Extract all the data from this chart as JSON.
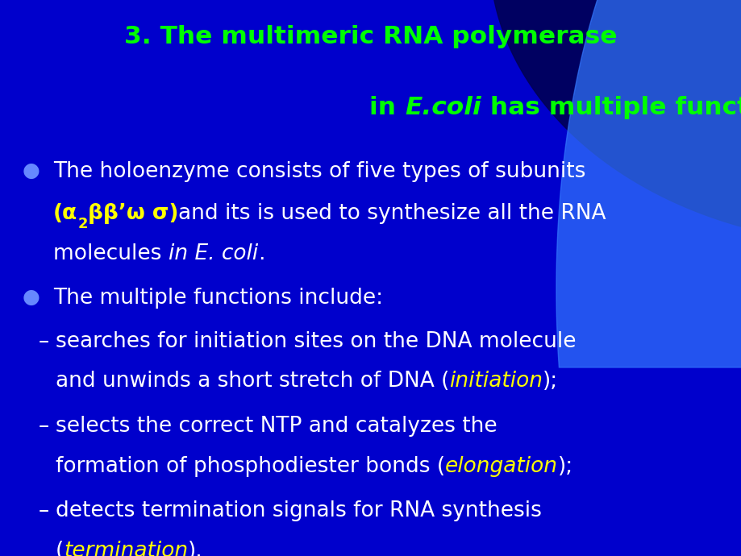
{
  "title_line1": "3. The multimeric RNA polymerase",
  "title_line2_pre": "in ",
  "title_ecoli": "E.coli",
  "title_line2_post": " has multiple functions",
  "title_color": "#00FF00",
  "bg_color": "#0000CC",
  "text_color": "#FFFFFF",
  "bullet_color": "#6688FF",
  "formula_color": "#FFFF00",
  "emph_color": "#FFFF00",
  "fs_title": 22.5,
  "fs_body": 19.0,
  "fs_bullet": 18.0
}
